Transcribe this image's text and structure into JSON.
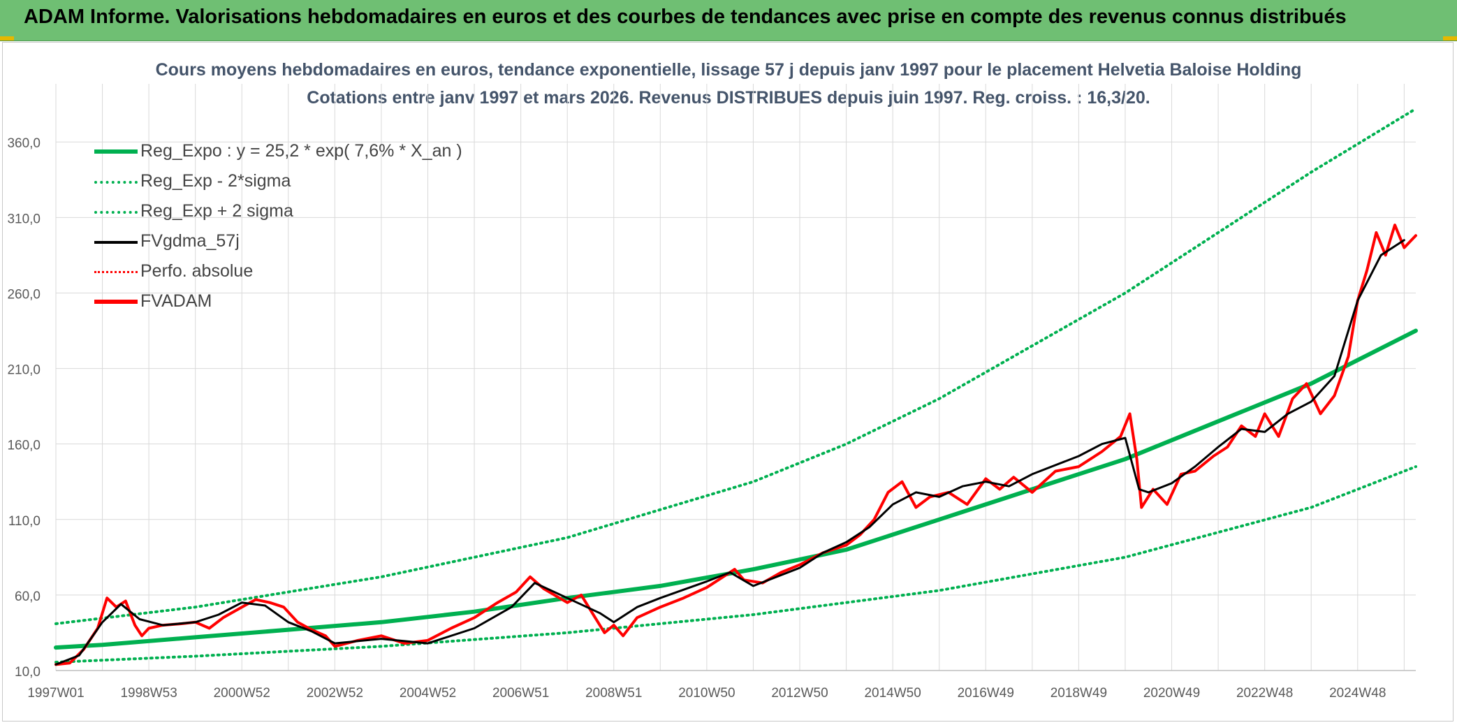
{
  "header": {
    "title": "ADAM Informe. Valorisations hebdomadaires en euros et des courbes de tendances avec prise en compte des revenus connus distribués"
  },
  "chart_data": {
    "type": "line",
    "title": "Cours moyens hebdomadaires en euros, tendance exponentielle, lissage 57 j depuis janv 1997 pour le placement Helvetia Baloise Holding",
    "subtitle": "Cotations entre janv 1997 et mars 2026. Revenus DISTRIBUES depuis juin 1997. Reg. croiss. : 16,3/20.",
    "xlabel": "",
    "ylabel": "",
    "ylim": [
      10,
      380
    ],
    "xlim": [
      1997.0,
      2026.25
    ],
    "grid": true,
    "legend_position": "top-left",
    "y_ticks": [
      "10,0",
      "60,0",
      "110,0",
      "160,0",
      "210,0",
      "260,0",
      "310,0",
      "360,0"
    ],
    "y_tick_values": [
      10,
      60,
      110,
      160,
      210,
      260,
      310,
      360
    ],
    "x_ticks": [
      "1997W01",
      "1998W53",
      "2000W52",
      "2002W52",
      "2004W52",
      "2006W51",
      "2008W51",
      "2010W50",
      "2012W50",
      "2014W50",
      "2016W49",
      "2018W49",
      "2020W49",
      "2022W48",
      "2024W48"
    ],
    "x_tick_values": [
      1997.0,
      1999.0,
      2001.0,
      2003.0,
      2005.0,
      2007.0,
      2009.0,
      2011.0,
      2013.0,
      2015.0,
      2017.0,
      2019.0,
      2021.0,
      2023.0,
      2025.0
    ],
    "colors": {
      "green": "#00b050",
      "black": "#000000",
      "red": "#ff0000",
      "grid": "#d9d9d9",
      "axis": "#bfbfbf",
      "text": "#595959"
    },
    "series": [
      {
        "name": "Reg_Expo : y = 25,2 * exp( 7,6% *  X_an )",
        "color": "#00b050",
        "style": "solid-thick",
        "x": [
          1997.0,
          1998.0,
          2000.0,
          2002.0,
          2004.0,
          2006.0,
          2008.0,
          2010.0,
          2012.0,
          2014.0,
          2016.0,
          2018.0,
          2020.0,
          2022.0,
          2024.0,
          2026.25
        ],
        "y": [
          25.2,
          27,
          32,
          37,
          42,
          49,
          58,
          66,
          77,
          90,
          110,
          130,
          150,
          175,
          200,
          235
        ]
      },
      {
        "name": "Reg_Exp - 2*sigma",
        "color": "#00b050",
        "style": "dotted",
        "x": [
          1997.0,
          2000.0,
          2004.0,
          2008.0,
          2012.0,
          2016.0,
          2020.0,
          2024.0,
          2026.25
        ],
        "y": [
          15.5,
          19.5,
          26,
          35,
          47,
          63,
          85,
          118,
          145
        ]
      },
      {
        "name": "Reg_Exp + 2 sigma",
        "color": "#00b050",
        "style": "dotted",
        "x": [
          1997.0,
          2000.0,
          2004.0,
          2008.0,
          2012.0,
          2014.0,
          2016.0,
          2018.0,
          2020.0,
          2022.0,
          2024.0,
          2026.25
        ],
        "y": [
          41,
          52,
          72,
          98,
          135,
          160,
          190,
          225,
          260,
          300,
          340,
          382
        ]
      },
      {
        "name": "FVgdma_57j",
        "color": "#000000",
        "style": "solid",
        "x": [
          1997.0,
          1997.5,
          1998.0,
          1998.4,
          1998.8,
          1999.3,
          2000.0,
          2000.5,
          2001.0,
          2001.5,
          2002.0,
          2002.5,
          2003.0,
          2004.0,
          2005.0,
          2006.0,
          2006.8,
          2007.3,
          2008.0,
          2008.7,
          2009.0,
          2009.5,
          2010.0,
          2011.0,
          2011.5,
          2012.0,
          2013.0,
          2013.5,
          2014.0,
          2014.5,
          2015.0,
          2015.5,
          2016.0,
          2016.5,
          2017.0,
          2017.5,
          2018.0,
          2019.0,
          2019.5,
          2020.0,
          2020.3,
          2020.5,
          2021.0,
          2021.5,
          2022.0,
          2022.5,
          2023.0,
          2023.5,
          2024.0,
          2024.5,
          2025.0,
          2025.5,
          2026.0
        ],
        "y": [
          14,
          20,
          42,
          54,
          44,
          40,
          42,
          47,
          55,
          53,
          42,
          36,
          28,
          31,
          28,
          38,
          52,
          68,
          58,
          48,
          42,
          52,
          58,
          69,
          75,
          66,
          78,
          88,
          95,
          105,
          120,
          128,
          125,
          132,
          135,
          132,
          140,
          152,
          160,
          164,
          130,
          128,
          134,
          145,
          158,
          170,
          168,
          180,
          188,
          205,
          255,
          285,
          295
        ]
      },
      {
        "name": "Perfo. absolue",
        "color": "#ff0000",
        "style": "dotted",
        "x": [],
        "y": []
      },
      {
        "name": "FVADAM",
        "color": "#ff0000",
        "style": "solid-thick",
        "x": [
          1997.0,
          1997.3,
          1997.6,
          1997.9,
          1998.1,
          1998.3,
          1998.5,
          1998.7,
          1998.85,
          1999.0,
          1999.3,
          1999.7,
          2000.0,
          2000.3,
          2000.6,
          2001.0,
          2001.3,
          2001.6,
          2001.9,
          2002.2,
          2002.5,
          2002.8,
          2003.0,
          2003.5,
          2004.0,
          2004.5,
          2005.0,
          2005.5,
          2006.0,
          2006.5,
          2006.9,
          2007.2,
          2007.5,
          2008.0,
          2008.3,
          2008.6,
          2008.8,
          2009.0,
          2009.2,
          2009.5,
          2010.0,
          2010.5,
          2011.0,
          2011.4,
          2011.6,
          2011.8,
          2012.2,
          2012.6,
          2013.0,
          2013.5,
          2014.0,
          2014.3,
          2014.6,
          2014.9,
          2015.2,
          2015.5,
          2015.8,
          2016.2,
          2016.6,
          2017.0,
          2017.3,
          2017.6,
          2018.0,
          2018.5,
          2019.0,
          2019.5,
          2019.9,
          2020.1,
          2020.25,
          2020.35,
          2020.6,
          2020.9,
          2021.2,
          2021.5,
          2021.9,
          2022.2,
          2022.5,
          2022.8,
          2023.0,
          2023.3,
          2023.6,
          2023.9,
          2024.2,
          2024.5,
          2024.8,
          2025.0,
          2025.2,
          2025.4,
          2025.6,
          2025.8,
          2026.0,
          2026.25
        ],
        "y": [
          14,
          15,
          24,
          38,
          58,
          52,
          56,
          40,
          33,
          38,
          40,
          41,
          42,
          38,
          45,
          52,
          57,
          55,
          52,
          42,
          37,
          33,
          26,
          30,
          33,
          28,
          30,
          38,
          45,
          55,
          62,
          72,
          64,
          55,
          60,
          45,
          35,
          40,
          33,
          45,
          52,
          58,
          65,
          73,
          77,
          70,
          68,
          75,
          80,
          88,
          93,
          100,
          110,
          128,
          135,
          118,
          125,
          128,
          120,
          137,
          130,
          138,
          128,
          142,
          145,
          155,
          165,
          180,
          150,
          118,
          130,
          120,
          140,
          142,
          152,
          158,
          172,
          165,
          180,
          165,
          190,
          200,
          180,
          192,
          218,
          255,
          275,
          300,
          285,
          305,
          290,
          298
        ]
      }
    ]
  }
}
